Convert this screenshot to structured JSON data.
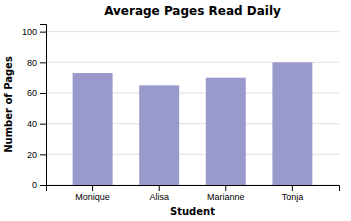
{
  "chart_data": {
    "type": "bar",
    "title": "Average Pages Read Daily",
    "xlabel": "Student",
    "ylabel": "Number of Pages",
    "categories": [
      "Monique",
      "Alisa",
      "Marianne",
      "Tonja"
    ],
    "values": [
      73,
      65,
      70,
      80
    ],
    "color": "#9999cc",
    "ylim": [
      0,
      105
    ],
    "yticks": [
      0,
      20,
      40,
      60,
      80,
      100
    ],
    "grid": true
  }
}
